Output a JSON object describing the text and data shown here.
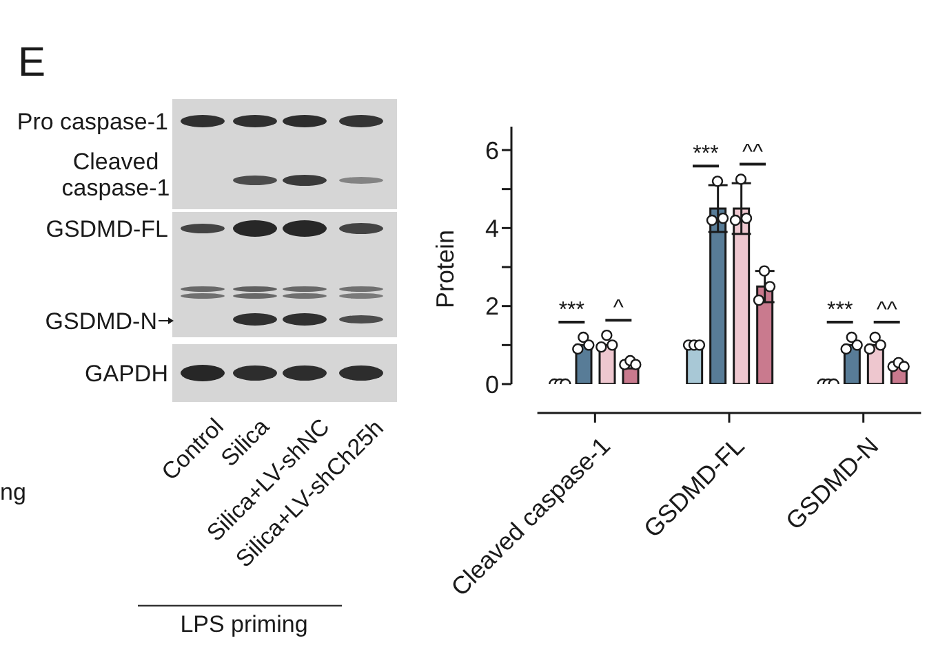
{
  "chart_data": [
    {
      "type": "other",
      "title": "E",
      "annotations": [
        "Pro caspase-1",
        "Cleaved caspase-1",
        "GSDMD-FL",
        "GSDMD-N",
        "GAPDH",
        "Control",
        "Silica",
        "Silica+LV-shNC",
        "Silica+LV-shCh25h",
        "LPS priming",
        "ng"
      ]
    },
    {
      "type": "bar",
      "ylabel": "Protein",
      "categories": [
        "Cleaved caspase-1",
        "GSDMD-FL",
        "GSDMD-N"
      ],
      "series": [
        {
          "color": "#a8c8d6",
          "values": [
            0,
            1.0,
            0
          ]
        },
        {
          "color": "#587c97",
          "values": [
            1.0,
            4.5,
            1.0
          ],
          "errors": [
            null,
            0.6,
            null
          ]
        },
        {
          "color": "#eec7cf",
          "values": [
            1.0,
            4.5,
            1.0
          ],
          "errors": [
            null,
            0.65,
            null
          ]
        },
        {
          "color": "#c97a8e",
          "values": [
            0.4,
            2.5,
            0.45
          ],
          "errors": [
            null,
            0.4,
            null
          ]
        },
        {
          "type": "scatter",
          "color": "#ffffff",
          "marker": "circle",
          "x": [
            "Cleaved caspase-1",
            "Cleaved caspase-1",
            "Cleaved caspase-1",
            "GSDMD-FL",
            "GSDMD-FL",
            "GSDMD-FL",
            "GSDMD-N",
            "GSDMD-N",
            "GSDMD-N"
          ],
          "values": [
            0,
            0,
            0,
            1.0,
            1.0,
            1.0,
            0,
            0,
            0
          ]
        },
        {
          "type": "scatter",
          "color": "#ffffff",
          "marker": "circle",
          "x": [
            "Cleaved caspase-1",
            "Cleaved caspase-1",
            "Cleaved caspase-1",
            "GSDMD-FL",
            "GSDMD-FL",
            "GSDMD-FL",
            "GSDMD-N",
            "GSDMD-N",
            "GSDMD-N"
          ],
          "values": [
            0.9,
            1.2,
            1.0,
            4.2,
            5.2,
            4.25,
            0.9,
            1.2,
            1.0
          ]
        },
        {
          "type": "scatter",
          "color": "#ffffff",
          "marker": "circle",
          "x": [
            "Cleaved caspase-1",
            "Cleaved caspase-1",
            "Cleaved caspase-1",
            "GSDMD-FL",
            "GSDMD-FL",
            "GSDMD-FL",
            "GSDMD-N",
            "GSDMD-N",
            "GSDMD-N"
          ],
          "values": [
            0.95,
            1.25,
            1.0,
            4.2,
            5.25,
            4.25,
            0.9,
            1.2,
            1.0
          ]
        },
        {
          "type": "scatter",
          "color": "#ffffff",
          "marker": "circle",
          "x": [
            "Cleaved caspase-1",
            "Cleaved caspase-1",
            "Cleaved caspase-1",
            "GSDMD-FL",
            "GSDMD-FL",
            "GSDMD-FL",
            "GSDMD-N",
            "GSDMD-N",
            "GSDMD-N"
          ],
          "values": [
            0.5,
            0.6,
            0.5,
            2.15,
            2.9,
            2.5,
            0.45,
            0.55,
            0.45
          ]
        }
      ],
      "ylim": [
        0,
        6.6
      ],
      "yticks": [
        0,
        {
          "value": 1,
          "label": null
        },
        2,
        {
          "value": 3,
          "label": null
        },
        4,
        {
          "value": 5,
          "label": null
        },
        6
      ],
      "annotations": [
        "***",
        "^",
        "***",
        "^^",
        "***",
        "^^"
      ]
    }
  ]
}
